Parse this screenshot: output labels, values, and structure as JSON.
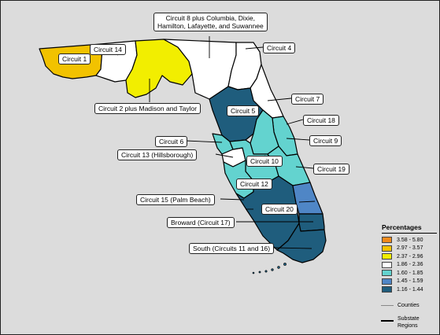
{
  "legend": {
    "title": "Percentages",
    "classes": [
      {
        "label": "3.58 - 5.80",
        "color": "#f08a1c"
      },
      {
        "label": "2.97 - 3.57",
        "color": "#f2c200"
      },
      {
        "label": "2.37 - 2.96",
        "color": "#f2ee00"
      },
      {
        "label": "1.86 - 2.36",
        "color": "#ffffff"
      },
      {
        "label": "1.60 - 1.85",
        "color": "#63d3cf"
      },
      {
        "label": "1.45 - 1.59",
        "color": "#4f86c6"
      },
      {
        "label": "1.16 - 1.44",
        "color": "#1f5d7d"
      }
    ],
    "counties_label": "Counties",
    "substate_label_line1": "Substate",
    "substate_label_line2": "Regions"
  },
  "callouts": {
    "c8_line1": "Circuit 8 plus Columbia, Dixie,",
    "c8_line2": "Hamilton, Lafayette, and Suwannee",
    "c4": "Circuit 4",
    "c1": "Circuit 1",
    "c14": "Circuit 14",
    "c2": "Circuit 2 plus Madison and Taylor",
    "c7": "Circuit 7",
    "c5": "Circuit 5",
    "c18": "Circuit 18",
    "c6": "Circuit 6",
    "c9": "Circuit 9",
    "c13": "Circuit 13 (Hillsborough)",
    "c10": "Circuit 10",
    "c19": "Circuit 19",
    "c12": "Circuit 12",
    "c15": "Circuit 15 (Palm Beach)",
    "c20": "Circuit 20",
    "c17": "Broward (Circuit 17)",
    "south": "South (Circuits 11 and 16)"
  },
  "regions": {
    "circuit_1": {
      "color": "#f2c200"
    },
    "circuit_14": {
      "color": "#ffffff"
    },
    "circuit_2": {
      "color": "#f2ee00"
    },
    "circuit_8": {
      "color": "#ffffff"
    },
    "circuit_4": {
      "color": "#ffffff"
    },
    "circuit_7": {
      "color": "#ffffff"
    },
    "circuit_5": {
      "color": "#1f5d7d"
    },
    "circuit_18": {
      "color": "#63d3cf"
    },
    "circuit_6": {
      "color": "#63d3cf"
    },
    "circuit_13": {
      "color": "#ffffff"
    },
    "circuit_9": {
      "color": "#63d3cf"
    },
    "circuit_10": {
      "color": "#63d3cf"
    },
    "circuit_19": {
      "color": "#63d3cf"
    },
    "circuit_12": {
      "color": "#63d3cf"
    },
    "circuit_20": {
      "color": "#1f5d7d"
    },
    "circuit_15": {
      "color": "#4f86c6"
    },
    "circuit_17": {
      "color": "#1f5d7d"
    },
    "south": {
      "color": "#1f5d7d"
    }
  }
}
